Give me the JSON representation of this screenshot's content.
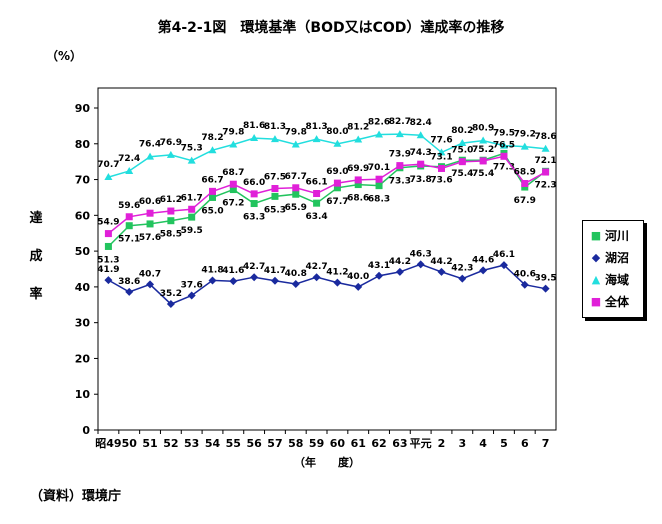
{
  "title": "第4-2-1図　環境基準（BOD又はCOD）達成率の推移",
  "unit_label": "（%）",
  "ylabel_chars": [
    "達",
    "成",
    "率"
  ],
  "source": "（資料）環境庁",
  "colors": {
    "河川": "#22c45e",
    "湖沼": "#1a2a9e",
    "海域": "#22dede",
    "全体": "#e020d8",
    "axis": "#000000"
  },
  "chart_data": {
    "type": "line",
    "title": "第4-2-1図　環境基準（BOD又はCOD）達成率の推移",
    "xlabel": "（年　　度）",
    "ylabel": "達成率",
    "ylim": [
      0,
      90
    ],
    "yticks": [
      0,
      10,
      20,
      30,
      40,
      50,
      60,
      70,
      80,
      90
    ],
    "grid": false,
    "legend_position": "right",
    "categories": [
      "昭49",
      "50",
      "51",
      "52",
      "53",
      "54",
      "55",
      "56",
      "57",
      "58",
      "59",
      "60",
      "61",
      "62",
      "63",
      "平元",
      "2",
      "3",
      "4",
      "5",
      "6",
      "7"
    ],
    "series": [
      {
        "name": "河川",
        "marker": "■",
        "values": [
          51.3,
          57.1,
          57.6,
          58.5,
          59.5,
          65.0,
          67.2,
          63.3,
          65.3,
          65.9,
          63.4,
          67.7,
          68.6,
          68.3,
          73.3,
          73.8,
          73.6,
          75.4,
          75.4,
          77.3,
          67.9,
          72.3
        ]
      },
      {
        "name": "湖沼",
        "marker": "◆",
        "values": [
          41.9,
          38.6,
          40.7,
          35.2,
          37.6,
          41.8,
          41.6,
          42.7,
          41.7,
          40.8,
          42.7,
          41.2,
          40.0,
          43.1,
          44.2,
          46.3,
          44.2,
          42.3,
          44.6,
          46.1,
          40.6,
          39.5
        ]
      },
      {
        "name": "海域",
        "marker": "▲",
        "values": [
          70.7,
          72.4,
          76.4,
          76.9,
          75.3,
          78.2,
          79.8,
          81.6,
          81.3,
          79.8,
          81.3,
          80.0,
          81.2,
          82.6,
          82.7,
          82.4,
          77.6,
          80.2,
          80.9,
          79.5,
          79.2,
          78.6
        ]
      },
      {
        "name": "全体",
        "marker": "■",
        "values": [
          54.9,
          59.6,
          60.6,
          61.2,
          61.7,
          66.7,
          68.7,
          66.0,
          67.5,
          67.7,
          66.1,
          69.0,
          69.9,
          70.1,
          73.9,
          74.3,
          73.1,
          75.0,
          75.2,
          76.5,
          68.9,
          72.1
        ]
      }
    ]
  }
}
